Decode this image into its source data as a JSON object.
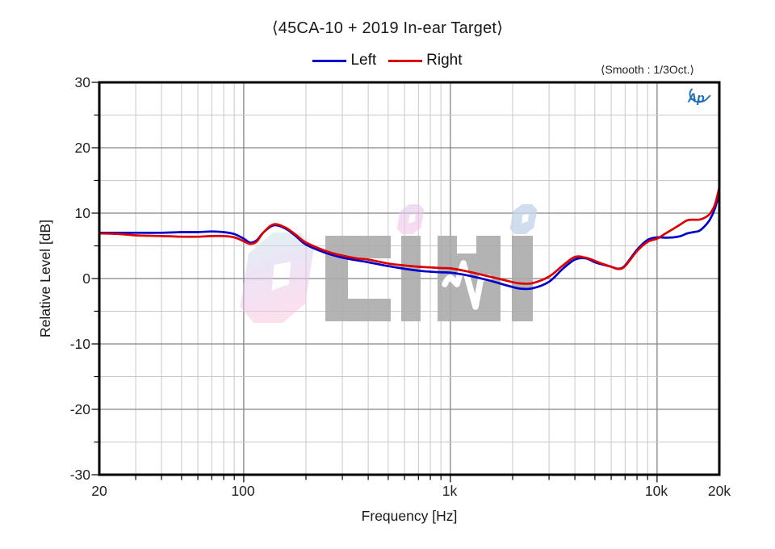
{
  "title": "⟨45CA-10 + 2019 In-ear Target⟩",
  "legend": {
    "items": [
      {
        "label": "Left",
        "color": "#0000cc"
      },
      {
        "label": "Right",
        "color": "#dd0000"
      }
    ]
  },
  "smooth_label": "⟨Smooth : 1/3Oct.⟩",
  "ap_logo_text": "Ap",
  "watermark": {
    "text": "0디비",
    "meaning": "0dB logo"
  },
  "colors": {
    "left_curve": "#0000cc",
    "right_curve": "#dd0000",
    "grid_minor": "#c9c9c9",
    "grid_major": "#858585",
    "axis_border": "#000000",
    "watermark_gray": "#ababab",
    "ap_logo_blue": "#1d6fb5"
  },
  "chart_data": {
    "type": "line",
    "title": "⟨45CA-10 + 2019 In-ear Target⟩",
    "xlabel": "Frequency [Hz]",
    "ylabel": "Relative Level [dB]",
    "x_scale": "log",
    "xlim": [
      20,
      20000
    ],
    "ylim": [
      -30,
      30
    ],
    "grid": true,
    "y_minor_step": 5,
    "legend_position": "top-center",
    "smoothing": "1/3 Octave",
    "xticks": {
      "values": [
        20,
        100,
        1000,
        10000,
        20000
      ],
      "labels": [
        "20",
        "100",
        "1k",
        "10k",
        "20k"
      ]
    },
    "yticks": {
      "values": [
        30,
        20,
        10,
        0,
        -10,
        -20,
        -30
      ],
      "labels": [
        "30",
        "20",
        "10",
        "0",
        "-10",
        "-20",
        "-30"
      ]
    },
    "x": [
      20,
      25,
      30,
      40,
      50,
      60,
      70,
      80,
      90,
      100,
      107,
      115,
      125,
      140,
      160,
      180,
      200,
      250,
      300,
      350,
      400,
      500,
      600,
      700,
      800,
      900,
      1000,
      1200,
      1500,
      1800,
      2000,
      2200,
      2500,
      3000,
      3500,
      4000,
      4500,
      5000,
      5500,
      6000,
      6500,
      7000,
      8000,
      9000,
      10000,
      11000,
      12000,
      13000,
      14000,
      15000,
      16000,
      17000,
      18000,
      19000,
      20000
    ],
    "series": [
      {
        "name": "Left",
        "color": "#0000cc",
        "values": [
          7.0,
          7.0,
          7.0,
          7.0,
          7.1,
          7.1,
          7.2,
          7.1,
          6.8,
          6.1,
          5.5,
          5.8,
          7.1,
          8.15,
          7.6,
          6.4,
          5.2,
          3.9,
          3.2,
          2.8,
          2.5,
          1.9,
          1.5,
          1.2,
          1.05,
          0.95,
          0.9,
          0.5,
          -0.2,
          -0.9,
          -1.3,
          -1.55,
          -1.5,
          -0.5,
          1.5,
          2.9,
          3.1,
          2.5,
          2.1,
          1.8,
          1.5,
          2.0,
          4.4,
          5.9,
          6.3,
          6.25,
          6.3,
          6.5,
          6.9,
          7.1,
          7.3,
          8.0,
          9.0,
          10.6,
          13.2
        ]
      },
      {
        "name": "Right",
        "color": "#dd0000",
        "values": [
          6.9,
          6.8,
          6.6,
          6.5,
          6.4,
          6.4,
          6.5,
          6.5,
          6.3,
          5.7,
          5.3,
          5.6,
          7.1,
          8.3,
          7.75,
          6.6,
          5.5,
          4.2,
          3.5,
          3.1,
          2.9,
          2.3,
          2.0,
          1.8,
          1.7,
          1.6,
          1.55,
          1.1,
          0.4,
          -0.2,
          -0.55,
          -0.75,
          -0.7,
          0.3,
          2.0,
          3.3,
          3.2,
          2.7,
          2.2,
          1.8,
          1.45,
          1.9,
          4.2,
          5.6,
          6.1,
          6.9,
          7.6,
          8.3,
          8.9,
          9.0,
          9.0,
          9.3,
          9.9,
          11.2,
          13.9
        ]
      }
    ]
  }
}
